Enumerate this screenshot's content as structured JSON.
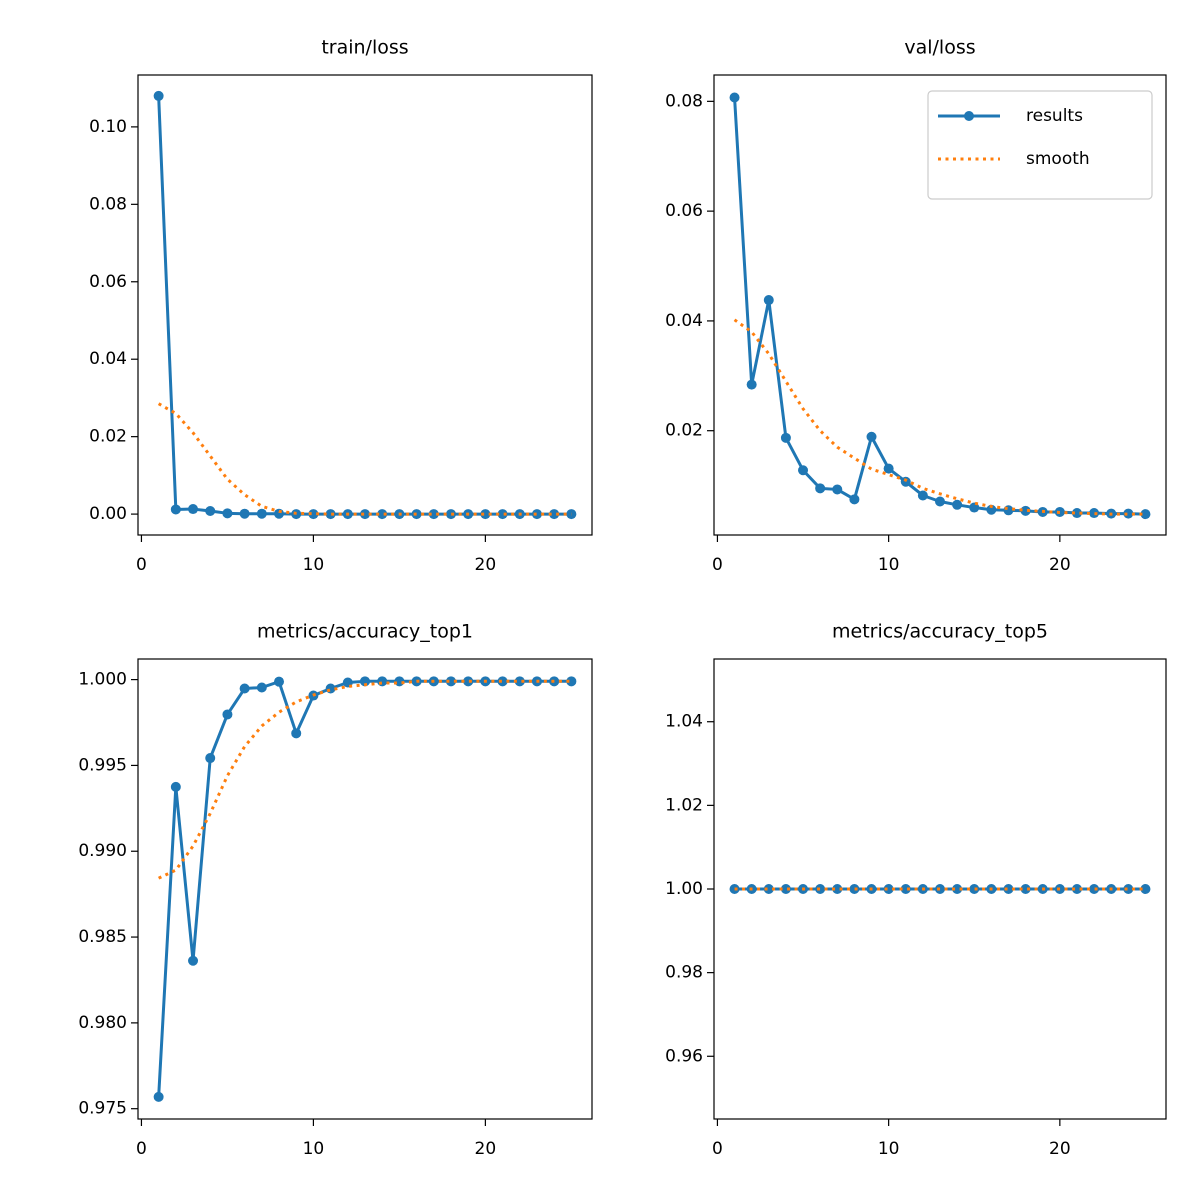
{
  "chart_data": [
    {
      "type": "line",
      "title": "train/loss",
      "x": [
        1,
        2,
        3,
        4,
        5,
        6,
        7,
        8,
        9,
        10,
        11,
        12,
        13,
        14,
        15,
        16,
        17,
        18,
        19,
        20,
        21,
        22,
        23,
        24,
        25
      ],
      "series": [
        {
          "color": "#1f77b4",
          "marker": "o",
          "linestyle": "solid",
          "values": [
            0.108,
            0.0012,
            0.0013,
            0.0008,
            0.0002,
            0.0001,
            0.0001,
            0.0001,
            0,
            0,
            0,
            0,
            0,
            0,
            0,
            0,
            0,
            0,
            0,
            0,
            0,
            0,
            0,
            0,
            0
          ]
        },
        {
          "color": "#ff7f0e",
          "linestyle": "dotted",
          "values": [
            0.0285,
            0.026,
            0.021,
            0.015,
            0.009,
            0.005,
            0.002,
            0.0007,
            0.0002,
            0.0001,
            0,
            0,
            0,
            0,
            0,
            0,
            0,
            0,
            0,
            0,
            0,
            0,
            0,
            0,
            0
          ]
        }
      ],
      "xlim": [
        -0.2,
        26.2
      ],
      "xticks": [
        0,
        10,
        20
      ],
      "ylim": [
        -0.0054,
        0.1134
      ],
      "yticks": [
        {
          "value": 0,
          "label": "0.00"
        },
        {
          "value": 0.02,
          "label": "0.02"
        },
        {
          "value": 0.04,
          "label": "0.04"
        },
        {
          "value": 0.06,
          "label": "0.06"
        },
        {
          "value": 0.08,
          "label": "0.08"
        },
        {
          "value": 0.1,
          "label": "0.10"
        }
      ]
    },
    {
      "type": "line",
      "title": "val/loss",
      "x": [
        1,
        2,
        3,
        4,
        5,
        6,
        7,
        8,
        9,
        10,
        11,
        12,
        13,
        14,
        15,
        16,
        17,
        18,
        19,
        20,
        21,
        22,
        23,
        24,
        25
      ],
      "series": [
        {
          "name": "results",
          "color": "#1f77b4",
          "marker": "o",
          "linestyle": "solid",
          "values": [
            0.0807,
            0.0284,
            0.0438,
            0.0187,
            0.0128,
            0.0095,
            0.0093,
            0.0075,
            0.0189,
            0.0131,
            0.0107,
            0.0082,
            0.0071,
            0.0065,
            0.006,
            0.0056,
            0.0055,
            0.0054,
            0.0052,
            0.0052,
            0.005,
            0.005,
            0.0049,
            0.0049,
            0.0048
          ]
        },
        {
          "name": "smooth",
          "color": "#ff7f0e",
          "linestyle": "dotted",
          "values": [
            0.0402,
            0.038,
            0.034,
            0.029,
            0.024,
            0.02,
            0.017,
            0.015,
            0.013,
            0.012,
            0.011,
            0.0095,
            0.0085,
            0.0076,
            0.0068,
            0.0062,
            0.0058,
            0.0055,
            0.0053,
            0.0051,
            0.005,
            0.0049,
            0.0048,
            0.0048,
            0.0048
          ]
        }
      ],
      "legend": "upper right",
      "xlim": [
        -0.2,
        26.2
      ],
      "xticks": [
        0,
        10,
        20
      ],
      "ylim": [
        0.001,
        0.0848
      ],
      "yticks": [
        0.02,
        0.04,
        0.06,
        0.08
      ]
    },
    {
      "type": "line",
      "title": "metrics/accuracy_top1",
      "x": [
        1,
        2,
        3,
        4,
        5,
        6,
        7,
        8,
        9,
        10,
        11,
        12,
        13,
        14,
        15,
        16,
        17,
        18,
        19,
        20,
        21,
        22,
        23,
        24,
        25
      ],
      "series": [
        {
          "color": "#1f77b4",
          "marker": "o",
          "linestyle": "solid",
          "values": [
            0.97569,
            0.99375,
            0.98362,
            0.99543,
            0.99797,
            0.99948,
            0.99954,
            0.99988,
            0.99687,
            0.99907,
            0.99948,
            0.99983,
            0.9999,
            0.9999,
            0.9999,
            0.9999,
            0.9999,
            0.9999,
            0.9999,
            0.9999,
            0.9999,
            0.9999,
            0.9999,
            0.9999,
            0.9999
          ]
        },
        {
          "color": "#ff7f0e",
          "linestyle": "dotted",
          "values": [
            0.98843,
            0.9889,
            0.9903,
            0.9922,
            0.9944,
            0.9961,
            0.9973,
            0.9981,
            0.9987,
            0.9991,
            0.9994,
            0.9996,
            0.9997,
            0.9998,
            0.9998,
            0.9999,
            0.9999,
            0.9999,
            0.9999,
            0.9999,
            0.9999,
            0.9999,
            0.9999,
            0.9999,
            0.9999
          ]
        }
      ],
      "xlim": [
        -0.2,
        26.2
      ],
      "xticks": [
        0,
        10,
        20
      ],
      "ylim": [
        0.9744,
        1.0012
      ],
      "yticks": [
        0.975,
        {
          "value": 0.98,
          "label": "0.980"
        },
        0.985,
        {
          "value": 0.99,
          "label": "0.990"
        },
        0.995,
        {
          "value": 1,
          "label": "1.000"
        }
      ]
    },
    {
      "type": "line",
      "title": "metrics/accuracy_top5",
      "x": [
        1,
        2,
        3,
        4,
        5,
        6,
        7,
        8,
        9,
        10,
        11,
        12,
        13,
        14,
        15,
        16,
        17,
        18,
        19,
        20,
        21,
        22,
        23,
        24,
        25
      ],
      "series": [
        {
          "color": "#1f77b4",
          "marker": "o",
          "linestyle": "solid",
          "values": [
            1,
            1,
            1,
            1,
            1,
            1,
            1,
            1,
            1,
            1,
            1,
            1,
            1,
            1,
            1,
            1,
            1,
            1,
            1,
            1,
            1,
            1,
            1,
            1,
            1
          ]
        },
        {
          "color": "#ff7f0e",
          "linestyle": "dotted",
          "values": [
            1,
            1,
            1,
            1,
            1,
            1,
            1,
            1,
            1,
            1,
            1,
            1,
            1,
            1,
            1,
            1,
            1,
            1,
            1,
            1,
            1,
            1,
            1,
            1,
            1
          ]
        }
      ],
      "xlim": [
        -0.2,
        26.2
      ],
      "xticks": [
        0,
        10,
        20
      ],
      "ylim": [
        0.945,
        1.055
      ],
      "yticks": [
        0.96,
        0.98,
        {
          "value": 1,
          "label": "1.00"
        },
        1.02,
        1.04
      ]
    }
  ]
}
